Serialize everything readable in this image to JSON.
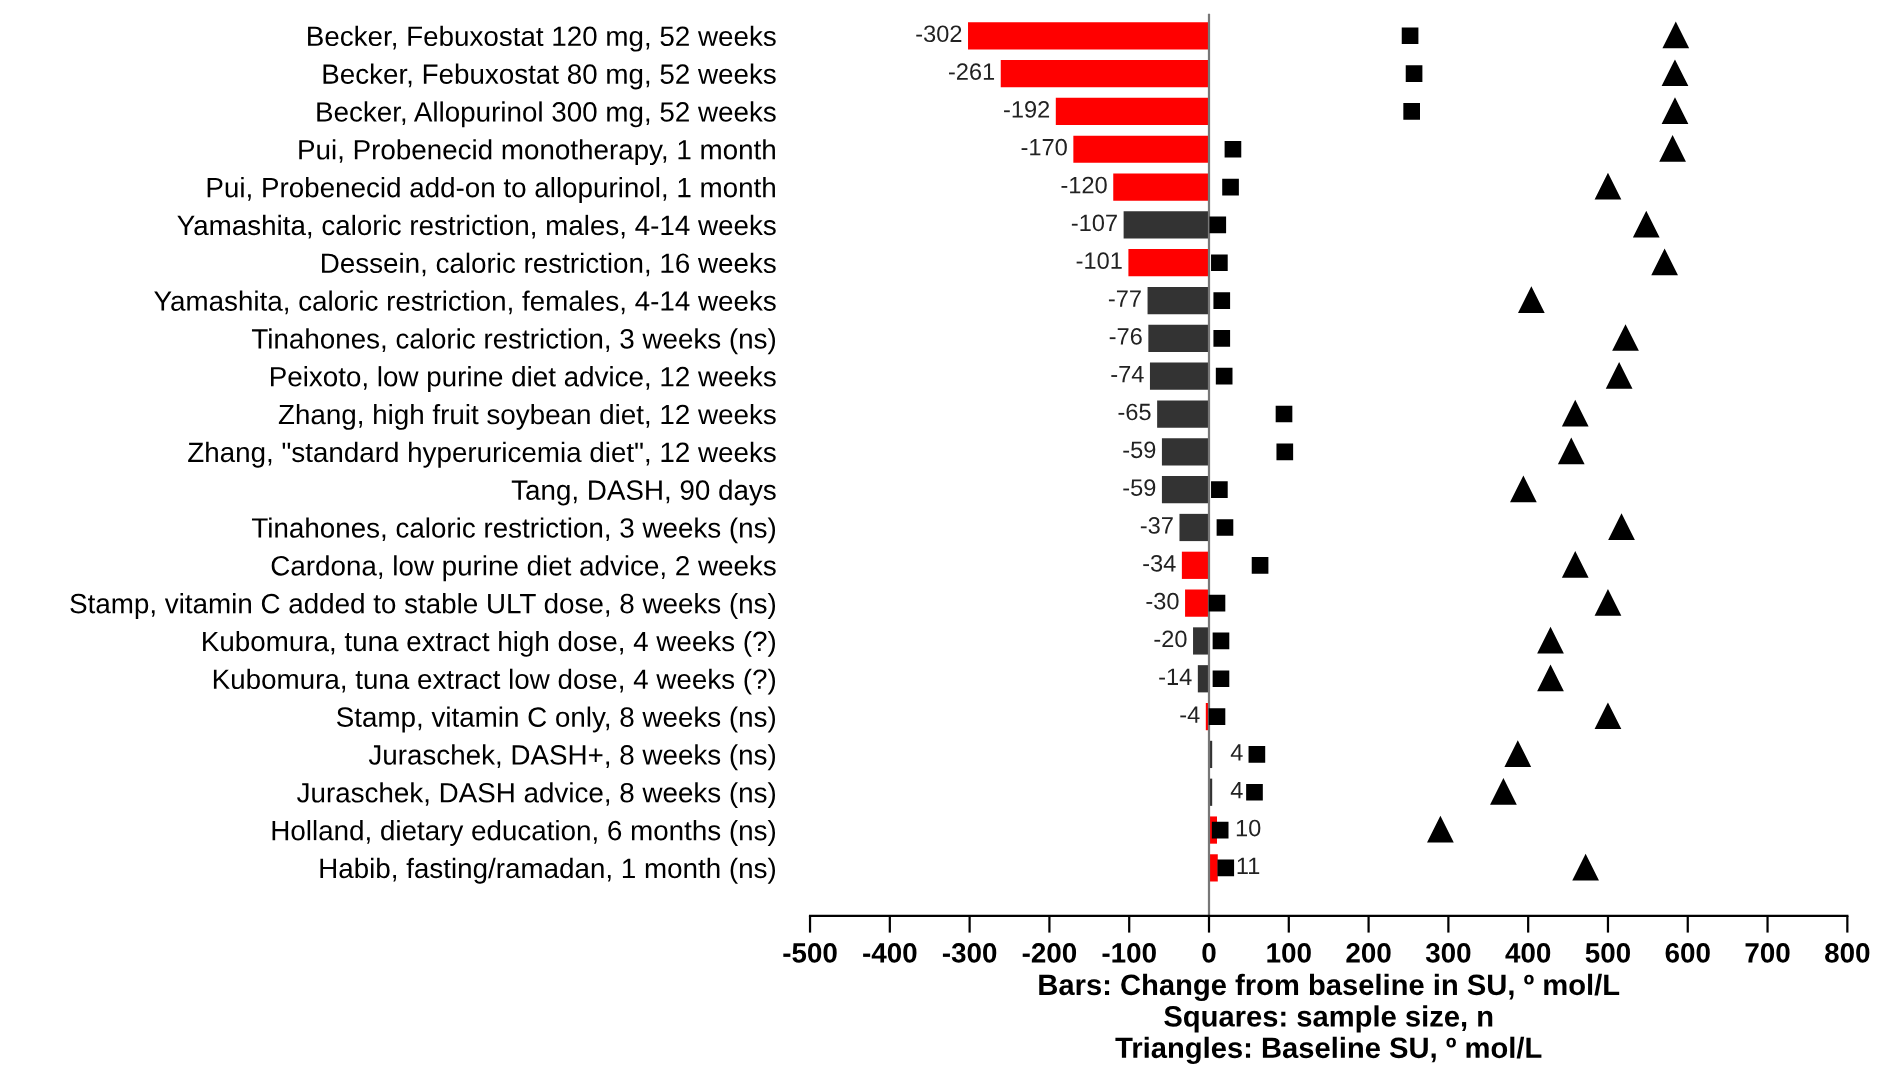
{
  "chart_data": {
    "type": "bar",
    "orientation": "horizontal",
    "categories": [
      "Becker, Febuxostat 120 mg, 52 weeks",
      "Becker, Febuxostat 80 mg, 52 weeks",
      "Becker, Allopurinol 300 mg, 52 weeks",
      "Pui, Probenecid monotherapy, 1 month",
      "Pui, Probenecid add-on to allopurinol, 1 month",
      "Yamashita, caloric restriction, males, 4-14 weeks",
      "Dessein, caloric restriction, 16 weeks",
      "Yamashita, caloric restriction, females, 4-14 weeks",
      "Tinahones, caloric restriction, 3 weeks (ns)",
      "Peixoto, low purine diet advice, 12 weeks",
      "Zhang, high fruit soybean diet, 12 weeks",
      "Zhang, \"standard hyperuricemia diet\", 12 weeks",
      "Tang, DASH, 90 days",
      "Tinahones, caloric restriction, 3 weeks (ns)",
      "Cardona, low purine diet advice, 2 weeks",
      "Stamp, vitamin C added to stable ULT dose, 8 weeks (ns)",
      "Kubomura, tuna extract high dose, 4 weeks (?)",
      "Kubomura, tuna extract low dose, 4 weeks (?)",
      "Stamp, vitamin C only, 8 weeks (ns)",
      "Juraschek, DASH+, 8 weeks (ns)",
      "Juraschek, DASH advice, 8 weeks (ns)",
      "Holland, dietary education, 6 months (ns)",
      "Habib, fasting/ramadan, 1 month (ns)"
    ],
    "series": [
      {
        "data_labels": true,
        "values": [
          -302,
          -261,
          -192,
          -170,
          -120,
          -107,
          -101,
          -77,
          -76,
          -74,
          -65,
          -59,
          -59,
          -37,
          -34,
          -30,
          -20,
          -14,
          -4,
          4,
          4,
          10,
          11
        ],
        "colors": [
          "#ff0000",
          "#ff0000",
          "#ff0000",
          "#ff0000",
          "#ff0000",
          "#333333",
          "#ff0000",
          "#333333",
          "#333333",
          "#333333",
          "#333333",
          "#333333",
          "#333333",
          "#333333",
          "#ff0000",
          "#ff0000",
          "#333333",
          "#333333",
          "#ff0000",
          "#333333",
          "#333333",
          "#ff0000",
          "#ff0000"
        ]
      },
      {
        "type": "scatter",
        "marker": "square",
        "color": "#000000",
        "values": [
          252,
          257,
          254,
          30,
          27,
          11,
          13,
          16,
          16,
          19,
          94,
          95,
          13,
          20,
          64,
          10,
          15,
          15,
          10,
          60,
          57,
          14,
          21
        ]
      },
      {
        "type": "scatter",
        "marker": "triangle",
        "color": "#000000",
        "values": [
          585,
          584,
          584,
          581,
          500,
          548,
          571,
          404,
          522,
          514,
          459,
          454,
          394,
          517,
          459,
          500,
          428,
          428,
          500,
          387,
          369,
          290,
          472
        ]
      }
    ],
    "xlabel": "Bars: Change from baseline in SU, º mol/L\nSquares: sample size, n\nTriangles: Baseline SU, º mol/L",
    "xlim": [
      -500,
      800
    ],
    "xticks": [
      -500,
      -400,
      -300,
      -200,
      -100,
      0,
      100,
      200,
      300,
      400,
      500,
      600,
      700,
      800
    ],
    "legend": false
  }
}
